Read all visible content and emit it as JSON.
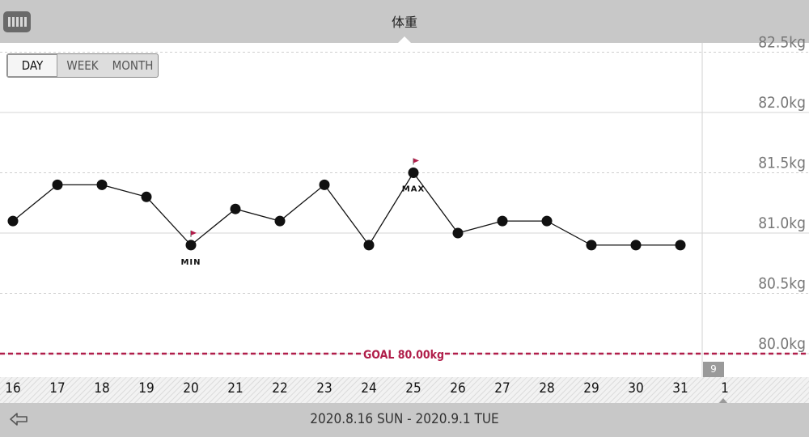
{
  "header": {
    "title": "体重"
  },
  "range_tabs": [
    {
      "label": "DAY",
      "active": true
    },
    {
      "label": "WEEK",
      "active": false
    },
    {
      "label": "MONTH",
      "active": false
    }
  ],
  "footer": {
    "date_range": "2020.8.16 SUN - 2020.9.1 TUE"
  },
  "month_badge": "9",
  "colors": {
    "goal": "#b01e4a",
    "marker": "#b01e4a"
  },
  "chart_data": {
    "type": "line",
    "x": [
      "16",
      "17",
      "18",
      "19",
      "20",
      "21",
      "22",
      "23",
      "24",
      "25",
      "26",
      "27",
      "28",
      "29",
      "30",
      "31",
      "1"
    ],
    "series": [
      {
        "values": [
          81.1,
          81.4,
          81.4,
          81.3,
          80.9,
          81.2,
          81.1,
          81.4,
          80.9,
          81.5,
          81.0,
          81.1,
          81.1,
          80.9,
          80.9,
          80.9,
          null
        ]
      }
    ],
    "ylim": [
      79.8,
      82.5
    ],
    "y_ticks": [
      "82.5kg",
      "82.0kg",
      "81.5kg",
      "81.0kg",
      "80.5kg",
      "80.0kg"
    ],
    "y_tick_values": [
      82.5,
      82.0,
      81.5,
      81.0,
      80.5,
      80.0
    ],
    "goal": {
      "value": 80.0,
      "label": "GOAL 80.00kg"
    },
    "annotations": [
      {
        "label": "MIN",
        "x": "20",
        "y": 80.9
      },
      {
        "label": "MAX",
        "x": "25",
        "y": 81.5
      }
    ],
    "grid": true
  }
}
